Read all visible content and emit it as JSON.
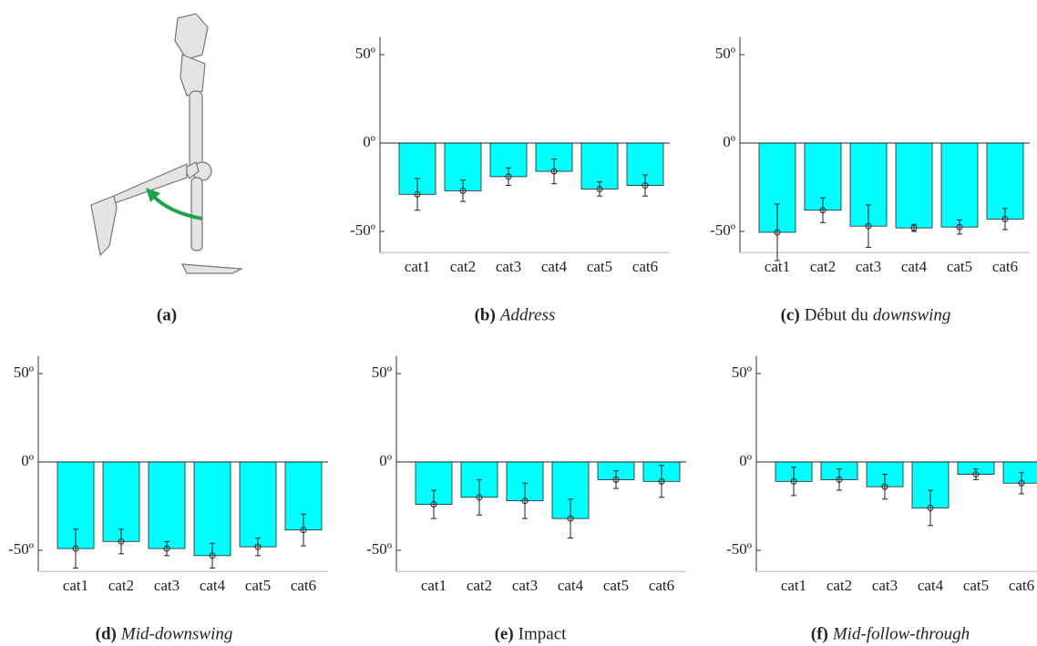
{
  "figure_a": {
    "caption_label": "(a)"
  },
  "chart_data": [
    {
      "type": "bar",
      "caption_label": "(b)",
      "caption_parts": [
        {
          "text": "Address",
          "italic": true
        }
      ],
      "categories": [
        "cat1",
        "cat2",
        "cat3",
        "cat4",
        "cat5",
        "cat6"
      ],
      "values": [
        -29,
        -27,
        -19,
        -16,
        -26,
        -24
      ],
      "errors": [
        9,
        6,
        5,
        7,
        4,
        6
      ],
      "color": "#00ffff",
      "ylim": [
        -62,
        60
      ],
      "yticks": [
        {
          "value": -50,
          "label": "-50º"
        },
        {
          "value": 0,
          "label": "0º"
        },
        {
          "value": 50,
          "label": "50º"
        }
      ]
    },
    {
      "type": "bar",
      "caption_label": "(c)",
      "caption_parts": [
        {
          "text": "Début du",
          "italic": false
        },
        {
          "text": "downswing",
          "italic": true
        }
      ],
      "categories": [
        "cat1",
        "cat2",
        "cat3",
        "cat4",
        "cat5",
        "cat6"
      ],
      "values": [
        -50.5,
        -38,
        -47,
        -48,
        -47.5,
        -43
      ],
      "errors": [
        16,
        7,
        12,
        2,
        4,
        6
      ],
      "color": "#00ffff",
      "ylim": [
        -62,
        60
      ],
      "yticks": [
        {
          "value": -50,
          "label": "-50º"
        },
        {
          "value": 0,
          "label": "0º"
        },
        {
          "value": 50,
          "label": "50º"
        }
      ]
    },
    {
      "type": "bar",
      "caption_label": "(d)",
      "caption_parts": [
        {
          "text": "Mid-downswing",
          "italic": true
        }
      ],
      "categories": [
        "cat1",
        "cat2",
        "cat3",
        "cat4",
        "cat5",
        "cat6"
      ],
      "values": [
        -49,
        -45,
        -49,
        -53,
        -48,
        -38.5
      ],
      "errors": [
        11,
        7,
        4,
        7,
        5,
        9
      ],
      "color": "#00ffff",
      "ylim": [
        -62,
        60
      ],
      "yticks": [
        {
          "value": -50,
          "label": "-50º"
        },
        {
          "value": 0,
          "label": "0º"
        },
        {
          "value": 50,
          "label": "50º"
        }
      ]
    },
    {
      "type": "bar",
      "caption_label": "(e)",
      "caption_parts": [
        {
          "text": "Impact",
          "italic": false
        }
      ],
      "categories": [
        "cat1",
        "cat2",
        "cat3",
        "cat4",
        "cat5",
        "cat6"
      ],
      "values": [
        -24,
        -20,
        -22,
        -32,
        -10,
        -11
      ],
      "errors": [
        8,
        10,
        10,
        11,
        5,
        9
      ],
      "color": "#00ffff",
      "ylim": [
        -62,
        60
      ],
      "yticks": [
        {
          "value": -50,
          "label": "-50º"
        },
        {
          "value": 0,
          "label": "0º"
        },
        {
          "value": 50,
          "label": "50º"
        }
      ]
    },
    {
      "type": "bar",
      "caption_label": "(f)",
      "caption_parts": [
        {
          "text": "Mid-follow-through",
          "italic": true
        }
      ],
      "categories": [
        "cat1",
        "cat2",
        "cat3",
        "cat4",
        "cat5",
        "cat6"
      ],
      "values": [
        -11,
        -10,
        -14,
        -26,
        -7,
        -12
      ],
      "errors": [
        8,
        6,
        7,
        10,
        3,
        6
      ],
      "color": "#00ffff",
      "ylim": [
        -62,
        60
      ],
      "yticks": [
        {
          "value": -50,
          "label": "-50º"
        },
        {
          "value": 0,
          "label": "0º"
        },
        {
          "value": 50,
          "label": "50º"
        }
      ]
    }
  ]
}
